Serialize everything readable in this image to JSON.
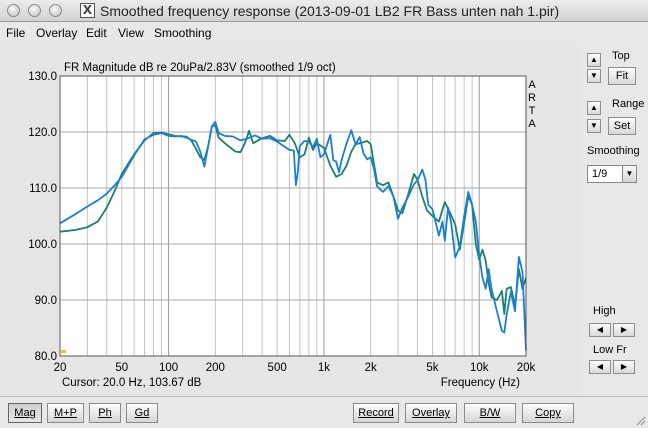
{
  "window": {
    "title": "Smoothed frequency response (2013-09-01 LB2 FR Bass unten nah 1.pir)"
  },
  "menu": [
    {
      "label": "File",
      "name": "menu-file"
    },
    {
      "label": "Overlay",
      "name": "menu-overlay"
    },
    {
      "label": "Edit",
      "name": "menu-edit"
    },
    {
      "label": "View",
      "name": "menu-view"
    },
    {
      "label": "Smoothing",
      "name": "menu-smoothing"
    }
  ],
  "side": {
    "top_label": "Top",
    "fit_label": "Fit",
    "range_label": "Range",
    "set_label": "Set",
    "smoothing_label": "Smoothing",
    "smoothing_value": "1/9",
    "high_label": "High",
    "lowfr_label": "Low Fr",
    "up_glyph": "▲",
    "down_glyph": "▼",
    "left_glyph": "◀",
    "right_glyph": "▶",
    "dd_glyph": "▼"
  },
  "bottom": {
    "left_buttons": [
      {
        "label": "Mag",
        "name": "mag-button"
      },
      {
        "label": "M+P",
        "name": "mag-phase-button"
      },
      {
        "label": "Ph",
        "name": "phase-button"
      },
      {
        "label": "Gd",
        "name": "group-delay-button"
      }
    ],
    "right_buttons": [
      {
        "label": "Record",
        "name": "record-button"
      },
      {
        "label": "Overlay",
        "name": "overlay-button"
      },
      {
        "label": "B/W",
        "name": "bw-button"
      },
      {
        "label": "Copy",
        "name": "copy-button"
      }
    ]
  },
  "chart_data": {
    "type": "line",
    "title": "FR Magnitude dB re 20uPa/2.83V (smoothed 1/9 oct)",
    "brand": [
      "A",
      "R",
      "T",
      "A"
    ],
    "xlabel": "Frequency (Hz)",
    "cursor_text": "Cursor: 20.0 Hz, 103.67 dB",
    "xscale": "log",
    "xlim": [
      20,
      20000
    ],
    "ylim": [
      80,
      130
    ],
    "grid": true,
    "yticks": [
      {
        "v": 80,
        "label": "80.0"
      },
      {
        "v": 90,
        "label": "90.0"
      },
      {
        "v": 100,
        "label": "100.0"
      },
      {
        "v": 110,
        "label": "110.0"
      },
      {
        "v": 120,
        "label": "120.0"
      },
      {
        "v": 130,
        "label": "130.0"
      }
    ],
    "xticks": [
      {
        "v": 20,
        "label": "20"
      },
      {
        "v": 50,
        "label": "50"
      },
      {
        "v": 100,
        "label": "100"
      },
      {
        "v": 200,
        "label": "200"
      },
      {
        "v": 500,
        "label": "500"
      },
      {
        "v": 1000,
        "label": "1k"
      },
      {
        "v": 2000,
        "label": "2k"
      },
      {
        "v": 5000,
        "label": "5k"
      },
      {
        "v": 10000,
        "label": "10k"
      },
      {
        "v": 20000,
        "label": "20k"
      }
    ],
    "series": [
      {
        "color": "#1a8070",
        "points": [
          [
            20,
            102.2
          ],
          [
            25,
            102.5
          ],
          [
            30,
            103
          ],
          [
            35,
            104
          ],
          [
            40,
            106.5
          ],
          [
            45,
            109.5
          ],
          [
            50,
            112.5
          ],
          [
            60,
            116
          ],
          [
            70,
            118.5
          ],
          [
            80,
            119.8
          ],
          [
            90,
            119.9
          ],
          [
            100,
            119.6
          ],
          [
            110,
            119.3
          ],
          [
            120,
            119.2
          ],
          [
            130,
            119.2
          ],
          [
            140,
            118.5
          ],
          [
            150,
            117
          ],
          [
            160,
            115.5
          ],
          [
            170,
            115
          ],
          [
            180,
            117.5
          ],
          [
            190,
            121
          ],
          [
            200,
            121.2
          ],
          [
            210,
            119
          ],
          [
            230,
            118
          ],
          [
            250,
            117.2
          ],
          [
            270,
            116.5
          ],
          [
            290,
            116.4
          ],
          [
            310,
            118
          ],
          [
            330,
            120.2
          ],
          [
            350,
            118
          ],
          [
            400,
            118.9
          ],
          [
            450,
            119.3
          ],
          [
            500,
            118.5
          ],
          [
            560,
            118.4
          ],
          [
            600,
            119.5
          ],
          [
            650,
            118
          ],
          [
            700,
            115.5
          ],
          [
            750,
            116
          ],
          [
            800,
            119
          ],
          [
            850,
            116.8
          ],
          [
            900,
            118
          ],
          [
            1000,
            117.2
          ],
          [
            1100,
            114
          ],
          [
            1200,
            112
          ],
          [
            1300,
            112.5
          ],
          [
            1400,
            114
          ],
          [
            1500,
            116.5
          ],
          [
            1600,
            117.8
          ],
          [
            1700,
            118
          ],
          [
            1800,
            118.2
          ],
          [
            1900,
            118.4
          ],
          [
            2000,
            117.8
          ],
          [
            2200,
            111
          ],
          [
            2400,
            110.5
          ],
          [
            2600,
            111
          ],
          [
            2800,
            108.5
          ],
          [
            3000,
            106
          ],
          [
            3200,
            105.5
          ],
          [
            3500,
            109
          ],
          [
            3800,
            112.5
          ],
          [
            4000,
            111.5
          ],
          [
            4300,
            108.5
          ],
          [
            4600,
            106
          ],
          [
            5000,
            105
          ],
          [
            5500,
            104
          ],
          [
            6000,
            107.5
          ],
          [
            6500,
            105.5
          ],
          [
            7000,
            103.5
          ],
          [
            7500,
            99
          ],
          [
            8000,
            103.8
          ],
          [
            8500,
            108.6
          ],
          [
            9000,
            107
          ],
          [
            9500,
            100
          ],
          [
            10000,
            97.2
          ],
          [
            10500,
            99
          ],
          [
            11000,
            97
          ],
          [
            11500,
            93
          ],
          [
            12000,
            90.5
          ],
          [
            13000,
            90
          ],
          [
            14000,
            91.6
          ],
          [
            14500,
            87.5
          ],
          [
            15000,
            92
          ],
          [
            16000,
            92.3
          ],
          [
            17000,
            89
          ],
          [
            18000,
            95.5
          ],
          [
            19000,
            92
          ],
          [
            20000,
            94
          ]
        ]
      },
      {
        "color": "#1a7fd4",
        "points": [
          [
            20,
            103.7
          ],
          [
            25,
            105.3
          ],
          [
            30,
            106.7
          ],
          [
            35,
            107.8
          ],
          [
            40,
            109
          ],
          [
            45,
            110.5
          ],
          [
            50,
            112
          ],
          [
            60,
            115.8
          ],
          [
            70,
            118.7
          ],
          [
            80,
            119.5
          ],
          [
            90,
            119.8
          ],
          [
            100,
            119.3
          ],
          [
            110,
            119.2
          ],
          [
            120,
            119.3
          ],
          [
            130,
            119
          ],
          [
            140,
            118.6
          ],
          [
            150,
            118.3
          ],
          [
            160,
            116.5
          ],
          [
            170,
            113.8
          ],
          [
            180,
            117.5
          ],
          [
            190,
            121
          ],
          [
            200,
            121.8
          ],
          [
            210,
            119.8
          ],
          [
            230,
            119.3
          ],
          [
            260,
            119.2
          ],
          [
            290,
            118.5
          ],
          [
            320,
            118.8
          ],
          [
            360,
            119.4
          ],
          [
            400,
            118.8
          ],
          [
            450,
            118.9
          ],
          [
            500,
            118.3
          ],
          [
            550,
            117.5
          ],
          [
            600,
            116.8
          ],
          [
            640,
            116.7
          ],
          [
            660,
            110.5
          ],
          [
            680,
            113
          ],
          [
            700,
            117.5
          ],
          [
            750,
            118.4
          ],
          [
            800,
            118.3
          ],
          [
            850,
            117.3
          ],
          [
            900,
            118.8
          ],
          [
            950,
            115.5
          ],
          [
            1000,
            116
          ],
          [
            1100,
            119.5
          ],
          [
            1150,
            115
          ],
          [
            1200,
            114.7
          ],
          [
            1250,
            112.8
          ],
          [
            1300,
            115
          ],
          [
            1400,
            118
          ],
          [
            1500,
            120.3
          ],
          [
            1600,
            117.8
          ],
          [
            1700,
            119.1
          ],
          [
            1800,
            116.1
          ],
          [
            1900,
            115.1
          ],
          [
            2000,
            115.5
          ],
          [
            2100,
            113.4
          ],
          [
            2200,
            110.3
          ],
          [
            2400,
            109.3
          ],
          [
            2600,
            110.3
          ],
          [
            2800,
            108.5
          ],
          [
            3000,
            104.5
          ],
          [
            3200,
            106.5
          ],
          [
            3500,
            108.5
          ],
          [
            3800,
            110.7
          ],
          [
            4000,
            111.3
          ],
          [
            4300,
            113.3
          ],
          [
            4500,
            111.5
          ],
          [
            4700,
            107
          ],
          [
            5000,
            106.2
          ],
          [
            5500,
            101.5
          ],
          [
            5800,
            104
          ],
          [
            6000,
            100.6
          ],
          [
            6300,
            106.5
          ],
          [
            6600,
            103.7
          ],
          [
            7000,
            97.6
          ],
          [
            7500,
            99.5
          ],
          [
            8000,
            105
          ],
          [
            8500,
            109.3
          ],
          [
            9000,
            107
          ],
          [
            9500,
            104
          ],
          [
            10000,
            98
          ],
          [
            10500,
            94
          ],
          [
            11000,
            92
          ],
          [
            11500,
            95.5
          ],
          [
            12000,
            92
          ],
          [
            13000,
            88
          ],
          [
            14000,
            84.5
          ],
          [
            14500,
            84.2
          ],
          [
            15000,
            87.3
          ],
          [
            16000,
            91.5
          ],
          [
            17000,
            88
          ],
          [
            18000,
            97.7
          ],
          [
            19000,
            95
          ],
          [
            20000,
            81
          ]
        ]
      }
    ]
  }
}
